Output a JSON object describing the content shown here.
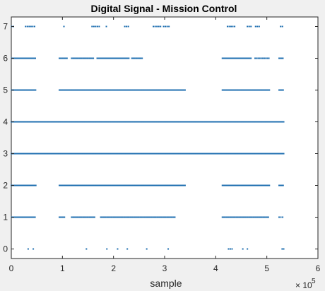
{
  "chart_data": {
    "type": "scatter",
    "title": "Digital Signal - Mission Control",
    "xlabel": "sample",
    "ylabel": "",
    "x_exponent_base": "× 10",
    "x_exponent_power": "5",
    "x_tick_labels": [
      "0",
      "1",
      "2",
      "3",
      "4",
      "5",
      "6"
    ],
    "y_tick_labels": [
      "0",
      "1",
      "2",
      "3",
      "4",
      "5",
      "6",
      "7"
    ],
    "xlim": [
      0,
      600000
    ],
    "ylim": [
      -0.3,
      7.3
    ],
    "grid": false,
    "marker_color": "#1f6fb0",
    "levels": [
      {
        "y": 7,
        "segments": [
          [
            500,
            2000,
            20000
          ],
          [
            4000,
            6000,
            20000
          ],
          [
            28000,
            48000,
            3500
          ],
          [
            103000,
            103000,
            1
          ],
          [
            158000,
            172000,
            3500
          ],
          [
            186000,
            186000,
            1
          ],
          [
            222000,
            229000,
            3500
          ],
          [
            278000,
            292000,
            3500
          ],
          [
            298000,
            310000,
            3500
          ],
          [
            423000,
            437000,
            3500
          ],
          [
            462000,
            470000,
            3500
          ],
          [
            478000,
            486000,
            3500
          ],
          [
            527000,
            533000,
            3500
          ]
        ]
      },
      {
        "y": 6,
        "segments": [
          [
            500,
            48000,
            1500
          ],
          [
            94000,
            110000,
            2500
          ],
          [
            118000,
            162000,
            2500
          ],
          [
            168000,
            230000,
            2000
          ],
          [
            236000,
            258000,
            2500
          ],
          [
            413000,
            470000,
            2000
          ],
          [
            477000,
            505000,
            3000
          ],
          [
            524000,
            533000,
            2500
          ]
        ]
      },
      {
        "y": 5,
        "segments": [
          [
            500,
            48000,
            1000
          ],
          [
            94000,
            340000,
            1000
          ],
          [
            413000,
            505000,
            1000
          ],
          [
            524000,
            533000,
            2000
          ]
        ]
      },
      {
        "y": 4,
        "segments": [
          [
            0,
            533000,
            1000
          ]
        ]
      },
      {
        "y": 3,
        "segments": [
          [
            0,
            533000,
            1000
          ]
        ]
      },
      {
        "y": 2,
        "segments": [
          [
            0,
            48000,
            1000
          ],
          [
            94000,
            340000,
            1000
          ],
          [
            413000,
            505000,
            1000
          ],
          [
            524000,
            533000,
            2000
          ]
        ]
      },
      {
        "y": 1,
        "segments": [
          [
            500,
            48000,
            2000
          ],
          [
            94000,
            105000,
            2500
          ],
          [
            118000,
            163000,
            2500
          ],
          [
            175000,
            320000,
            2500
          ],
          [
            413000,
            505000,
            2500
          ],
          [
            524000,
            533000,
            3500
          ]
        ]
      },
      {
        "y": 0,
        "segments": [
          [
            33000,
            33000,
            1
          ],
          [
            43000,
            43000,
            1
          ],
          [
            147000,
            147000,
            1
          ],
          [
            187000,
            187000,
            1
          ],
          [
            208000,
            208000,
            1
          ],
          [
            227000,
            227000,
            1
          ],
          [
            265000,
            265000,
            1
          ],
          [
            307000,
            307000,
            1
          ],
          [
            425000,
            432000,
            3500
          ],
          [
            453000,
            453000,
            1
          ],
          [
            462000,
            462000,
            1
          ],
          [
            530000,
            533000,
            3000
          ]
        ]
      }
    ]
  }
}
